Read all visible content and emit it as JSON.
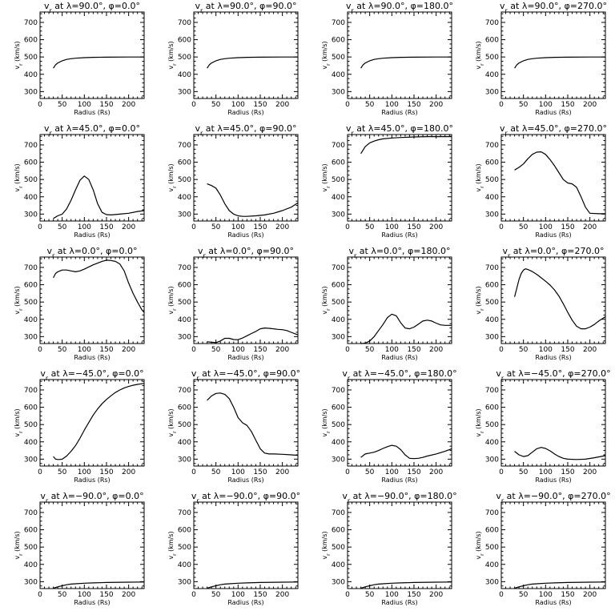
{
  "chart_data": [
    {
      "type": "line",
      "title": "v_r at λ=90.0°, φ=0.0°",
      "lat": "90.0",
      "lon": "0.0",
      "xlabel": "Radius (Rs)",
      "ylabel": "v_r (km/s)",
      "xlim": [
        0,
        235
      ],
      "ylim": [
        260,
        760
      ],
      "xticks": [
        0,
        50,
        100,
        150,
        200
      ],
      "yticks": [
        300,
        400,
        500,
        600,
        700
      ],
      "x": [
        30,
        35,
        40,
        50,
        60,
        70,
        80,
        100,
        120,
        150,
        200,
        235
      ],
      "y": [
        435,
        455,
        465,
        478,
        486,
        490,
        493,
        496,
        498,
        499,
        500,
        500
      ]
    },
    {
      "type": "line",
      "title": "v_r at λ=90.0°, φ=90.0°",
      "lat": "90.0",
      "lon": "90.0",
      "xlabel": "Radius (Rs)",
      "ylabel": "v_r (km/s)",
      "xlim": [
        0,
        235
      ],
      "ylim": [
        260,
        760
      ],
      "xticks": [
        0,
        50,
        100,
        150,
        200
      ],
      "yticks": [
        300,
        400,
        500,
        600,
        700
      ],
      "x": [
        30,
        35,
        40,
        50,
        60,
        70,
        80,
        100,
        120,
        150,
        200,
        235
      ],
      "y": [
        435,
        455,
        465,
        478,
        486,
        490,
        493,
        496,
        498,
        499,
        500,
        500
      ]
    },
    {
      "type": "line",
      "title": "v_r at λ=90.0°, φ=180.0°",
      "lat": "90.0",
      "lon": "180.0",
      "xlabel": "Radius (Rs)",
      "ylabel": "v_r (km/s)",
      "xlim": [
        0,
        235
      ],
      "ylim": [
        260,
        760
      ],
      "xticks": [
        0,
        50,
        100,
        150,
        200
      ],
      "yticks": [
        300,
        400,
        500,
        600,
        700
      ],
      "x": [
        30,
        35,
        40,
        50,
        60,
        70,
        80,
        100,
        120,
        150,
        200,
        235
      ],
      "y": [
        435,
        455,
        465,
        478,
        486,
        490,
        493,
        496,
        498,
        499,
        500,
        500
      ]
    },
    {
      "type": "line",
      "title": "v_r at λ=90.0°, φ=270.0°",
      "lat": "90.0",
      "lon": "270.0",
      "xlabel": "Radius (Rs)",
      "ylabel": "v_r (km/s)",
      "xlim": [
        0,
        235
      ],
      "ylim": [
        260,
        760
      ],
      "xticks": [
        0,
        50,
        100,
        150,
        200
      ],
      "yticks": [
        300,
        400,
        500,
        600,
        700
      ],
      "x": [
        30,
        35,
        40,
        50,
        60,
        70,
        80,
        100,
        120,
        150,
        200,
        235
      ],
      "y": [
        435,
        455,
        465,
        478,
        486,
        490,
        493,
        496,
        498,
        499,
        500,
        500
      ]
    },
    {
      "type": "line",
      "title": "v_r at λ=45.0°, φ=0.0°",
      "lat": "45.0",
      "lon": "0.0",
      "xlabel": "Radius (Rs)",
      "ylabel": "v_r (km/s)",
      "xlim": [
        0,
        235
      ],
      "ylim": [
        260,
        760
      ],
      "xticks": [
        0,
        50,
        100,
        150,
        200
      ],
      "yticks": [
        300,
        400,
        500,
        600,
        700
      ],
      "x": [
        30,
        40,
        50,
        60,
        70,
        80,
        90,
        100,
        110,
        120,
        130,
        140,
        150,
        160,
        180,
        200,
        220,
        235
      ],
      "y": [
        275,
        290,
        300,
        330,
        380,
        440,
        495,
        520,
        500,
        440,
        360,
        310,
        297,
        295,
        300,
        305,
        315,
        320
      ]
    },
    {
      "type": "line",
      "title": "v_r at λ=45.0°, φ=90.0°",
      "lat": "45.0",
      "lon": "90.0",
      "xlabel": "Radius (Rs)",
      "ylabel": "v_r (km/s)",
      "xlim": [
        0,
        235
      ],
      "ylim": [
        260,
        760
      ],
      "xticks": [
        0,
        50,
        100,
        150,
        200
      ],
      "yticks": [
        300,
        400,
        500,
        600,
        700
      ],
      "x": [
        30,
        40,
        50,
        60,
        70,
        80,
        90,
        100,
        110,
        120,
        140,
        160,
        180,
        200,
        220,
        235
      ],
      "y": [
        475,
        465,
        450,
        410,
        360,
        320,
        300,
        290,
        287,
        287,
        290,
        295,
        305,
        320,
        340,
        365
      ]
    },
    {
      "type": "line",
      "title": "v_r at λ=45.0°, φ=180.0°",
      "lat": "45.0",
      "lon": "180.0",
      "xlabel": "Radius (Rs)",
      "ylabel": "v_r (km/s)",
      "xlim": [
        0,
        235
      ],
      "ylim": [
        260,
        760
      ],
      "xticks": [
        0,
        50,
        100,
        150,
        200
      ],
      "yticks": [
        300,
        400,
        500,
        600,
        700
      ],
      "x": [
        30,
        35,
        40,
        50,
        60,
        70,
        80,
        100,
        120,
        150,
        180,
        200,
        235
      ],
      "y": [
        650,
        670,
        690,
        712,
        722,
        730,
        735,
        740,
        743,
        746,
        748,
        748,
        748
      ]
    },
    {
      "type": "line",
      "title": "v_r at λ=45.0°, φ=270.0°",
      "lat": "45.0",
      "lon": "270.0",
      "xlabel": "Radius (Rs)",
      "ylabel": "v_r (km/s)",
      "xlim": [
        0,
        235
      ],
      "ylim": [
        260,
        760
      ],
      "xticks": [
        0,
        50,
        100,
        150,
        200
      ],
      "yticks": [
        300,
        400,
        500,
        600,
        700
      ],
      "x": [
        30,
        40,
        50,
        60,
        70,
        80,
        90,
        100,
        110,
        120,
        130,
        140,
        150,
        160,
        170,
        180,
        190,
        200,
        220,
        235
      ],
      "y": [
        555,
        570,
        590,
        620,
        645,
        658,
        660,
        645,
        615,
        580,
        540,
        500,
        480,
        475,
        455,
        400,
        340,
        305,
        302,
        302
      ]
    },
    {
      "type": "line",
      "title": "v_r at λ=0.0°, φ=0.0°",
      "lat": "0.0",
      "lon": "0.0",
      "xlabel": "Radius (Rs)",
      "ylabel": "v_r (km/s)",
      "xlim": [
        0,
        235
      ],
      "ylim": [
        260,
        760
      ],
      "xticks": [
        0,
        50,
        100,
        150,
        200
      ],
      "yticks": [
        300,
        400,
        500,
        600,
        700
      ],
      "x": [
        30,
        35,
        40,
        50,
        60,
        70,
        80,
        90,
        100,
        120,
        140,
        150,
        160,
        170,
        180,
        190,
        200,
        210,
        220,
        230,
        235
      ],
      "y": [
        640,
        665,
        675,
        685,
        685,
        680,
        675,
        680,
        690,
        715,
        735,
        742,
        740,
        735,
        720,
        680,
        610,
        550,
        500,
        455,
        440
      ]
    },
    {
      "type": "line",
      "title": "v_r at λ=0.0°, φ=90.0°",
      "lat": "0.0",
      "lon": "90.0",
      "xlabel": "Radius (Rs)",
      "ylabel": "v_r (km/s)",
      "xlim": [
        0,
        235
      ],
      "ylim": [
        260,
        760
      ],
      "xticks": [
        0,
        50,
        100,
        150,
        200
      ],
      "yticks": [
        300,
        400,
        500,
        600,
        700
      ],
      "x": [
        30,
        40,
        50,
        60,
        70,
        80,
        90,
        100,
        110,
        120,
        130,
        140,
        150,
        160,
        170,
        180,
        190,
        200,
        210,
        220,
        235
      ],
      "y": [
        270,
        268,
        265,
        275,
        290,
        290,
        283,
        282,
        292,
        305,
        318,
        330,
        345,
        350,
        348,
        345,
        342,
        340,
        335,
        325,
        310
      ]
    },
    {
      "type": "line",
      "title": "v_r at λ=0.0°, φ=180.0°",
      "lat": "0.0",
      "lon": "180.0",
      "xlabel": "Radius (Rs)",
      "ylabel": "v_r (km/s)",
      "xlim": [
        0,
        235
      ],
      "ylim": [
        260,
        760
      ],
      "xticks": [
        0,
        50,
        100,
        150,
        200
      ],
      "yticks": [
        300,
        400,
        500,
        600,
        700
      ],
      "x": [
        30,
        40,
        50,
        60,
        70,
        80,
        90,
        100,
        110,
        120,
        130,
        140,
        150,
        160,
        170,
        180,
        190,
        200,
        210,
        220,
        235
      ],
      "y": [
        260,
        262,
        275,
        300,
        335,
        370,
        410,
        430,
        420,
        380,
        350,
        345,
        355,
        372,
        390,
        395,
        390,
        378,
        368,
        365,
        365
      ]
    },
    {
      "type": "line",
      "title": "v_r at λ=0.0°, φ=270.0°",
      "lat": "0.0",
      "lon": "270.0",
      "xlabel": "Radius (Rs)",
      "ylabel": "v_r (km/s)",
      "xlim": [
        0,
        235
      ],
      "ylim": [
        260,
        760
      ],
      "xticks": [
        0,
        50,
        100,
        150,
        200
      ],
      "yticks": [
        300,
        400,
        500,
        600,
        700
      ],
      "x": [
        30,
        35,
        40,
        45,
        50,
        55,
        60,
        70,
        80,
        90,
        100,
        110,
        120,
        130,
        140,
        150,
        160,
        170,
        180,
        190,
        200,
        210,
        220,
        235
      ],
      "y": [
        530,
        580,
        630,
        665,
        685,
        692,
        688,
        676,
        660,
        640,
        620,
        598,
        570,
        535,
        490,
        440,
        395,
        360,
        345,
        345,
        355,
        370,
        390,
        415
      ]
    },
    {
      "type": "line",
      "title": "v_r at λ=−45.0°, φ=0.0°",
      "lat": "−45.0",
      "lon": "0.0",
      "xlabel": "Radius (Rs)",
      "ylabel": "v_r (km/s)",
      "xlim": [
        0,
        235
      ],
      "ylim": [
        260,
        760
      ],
      "xticks": [
        0,
        50,
        100,
        150,
        200
      ],
      "yticks": [
        300,
        400,
        500,
        600,
        700
      ],
      "x": [
        30,
        35,
        40,
        45,
        50,
        60,
        70,
        80,
        90,
        100,
        110,
        120,
        130,
        140,
        150,
        160,
        170,
        180,
        190,
        200,
        210,
        220,
        235
      ],
      "y": [
        315,
        300,
        298,
        298,
        300,
        318,
        345,
        378,
        420,
        468,
        512,
        555,
        590,
        620,
        645,
        666,
        685,
        700,
        712,
        720,
        727,
        732,
        738
      ]
    },
    {
      "type": "line",
      "title": "v_r at λ=−45.0°, φ=90.0°",
      "lat": "−45.0",
      "lon": "90.0",
      "xlabel": "Radius (Rs)",
      "ylabel": "v_r (km/s)",
      "xlim": [
        0,
        235
      ],
      "ylim": [
        260,
        760
      ],
      "xticks": [
        0,
        50,
        100,
        150,
        200
      ],
      "yticks": [
        300,
        400,
        500,
        600,
        700
      ],
      "x": [
        30,
        40,
        50,
        60,
        70,
        80,
        90,
        100,
        110,
        120,
        130,
        140,
        150,
        160,
        170,
        180,
        200,
        220,
        235
      ],
      "y": [
        640,
        665,
        680,
        682,
        675,
        650,
        600,
        540,
        510,
        495,
        460,
        410,
        360,
        335,
        330,
        330,
        328,
        325,
        322
      ]
    },
    {
      "type": "line",
      "title": "v_r at λ=−45.0°, φ=180.0°",
      "lat": "−45.0",
      "lon": "180.0",
      "xlabel": "Radius (Rs)",
      "ylabel": "v_r (km/s)",
      "xlim": [
        0,
        235
      ],
      "ylim": [
        260,
        760
      ],
      "xticks": [
        0,
        50,
        100,
        150,
        200
      ],
      "yticks": [
        300,
        400,
        500,
        600,
        700
      ],
      "x": [
        30,
        40,
        50,
        60,
        70,
        80,
        90,
        100,
        110,
        120,
        130,
        140,
        150,
        160,
        170,
        180,
        200,
        220,
        235
      ],
      "y": [
        310,
        330,
        335,
        340,
        350,
        362,
        372,
        380,
        375,
        355,
        325,
        305,
        303,
        305,
        310,
        318,
        330,
        345,
        360
      ]
    },
    {
      "type": "line",
      "title": "v_r at λ=−45.0°, φ=270.0°",
      "lat": "−45.0",
      "lon": "270.0",
      "xlabel": "Radius (Rs)",
      "ylabel": "v_r (km/s)",
      "xlim": [
        0,
        235
      ],
      "ylim": [
        260,
        760
      ],
      "xticks": [
        0,
        50,
        100,
        150,
        200
      ],
      "yticks": [
        300,
        400,
        500,
        600,
        700
      ],
      "x": [
        30,
        40,
        50,
        60,
        70,
        80,
        90,
        100,
        110,
        120,
        130,
        140,
        150,
        170,
        190,
        210,
        235
      ],
      "y": [
        345,
        325,
        315,
        320,
        340,
        360,
        368,
        362,
        348,
        330,
        315,
        305,
        300,
        298,
        300,
        308,
        320
      ]
    },
    {
      "type": "line",
      "title": "v_r at λ=−90.0°, φ=0.0°",
      "lat": "−90.0",
      "lon": "0.0",
      "xlabel": "Radius (Rs)",
      "ylabel": "v_r (km/s)",
      "xlim": [
        0,
        235
      ],
      "ylim": [
        260,
        760
      ],
      "xticks": [
        0,
        50,
        100,
        150,
        200
      ],
      "yticks": [
        300,
        400,
        500,
        600,
        700
      ],
      "x": [
        30,
        40,
        50,
        60,
        70,
        80,
        100,
        120,
        150,
        200,
        235
      ],
      "y": [
        262,
        270,
        276,
        282,
        286,
        288,
        291,
        293,
        295,
        297,
        298
      ]
    },
    {
      "type": "line",
      "title": "v_r at λ=−90.0°, φ=90.0°",
      "lat": "−90.0",
      "lon": "90.0",
      "xlabel": "Radius (Rs)",
      "ylabel": "v_r (km/s)",
      "xlim": [
        0,
        235
      ],
      "ylim": [
        260,
        760
      ],
      "xticks": [
        0,
        50,
        100,
        150,
        200
      ],
      "yticks": [
        300,
        400,
        500,
        600,
        700
      ],
      "x": [
        30,
        40,
        50,
        60,
        70,
        80,
        100,
        120,
        150,
        200,
        235
      ],
      "y": [
        262,
        270,
        276,
        282,
        286,
        288,
        291,
        293,
        295,
        297,
        298
      ]
    },
    {
      "type": "line",
      "title": "v_r at λ=−90.0°, φ=180.0°",
      "lat": "−90.0",
      "lon": "180.0",
      "xlabel": "Radius (Rs)",
      "ylabel": "v_r (km/s)",
      "xlim": [
        0,
        235
      ],
      "ylim": [
        260,
        760
      ],
      "xticks": [
        0,
        50,
        100,
        150,
        200
      ],
      "yticks": [
        300,
        400,
        500,
        600,
        700
      ],
      "x": [
        30,
        40,
        50,
        60,
        70,
        80,
        100,
        120,
        150,
        200,
        235
      ],
      "y": [
        262,
        270,
        276,
        282,
        286,
        288,
        291,
        293,
        295,
        297,
        298
      ]
    },
    {
      "type": "line",
      "title": "v_r at λ=−90.0°, φ=270.0°",
      "lat": "−90.0",
      "lon": "270.0",
      "xlabel": "Radius (Rs)",
      "ylabel": "v_r (km/s)",
      "xlim": [
        0,
        235
      ],
      "ylim": [
        260,
        760
      ],
      "xticks": [
        0,
        50,
        100,
        150,
        200
      ],
      "yticks": [
        300,
        400,
        500,
        600,
        700
      ],
      "x": [
        30,
        40,
        50,
        60,
        70,
        80,
        100,
        120,
        150,
        200,
        235
      ],
      "y": [
        262,
        270,
        276,
        282,
        286,
        288,
        291,
        293,
        295,
        297,
        298
      ]
    }
  ]
}
